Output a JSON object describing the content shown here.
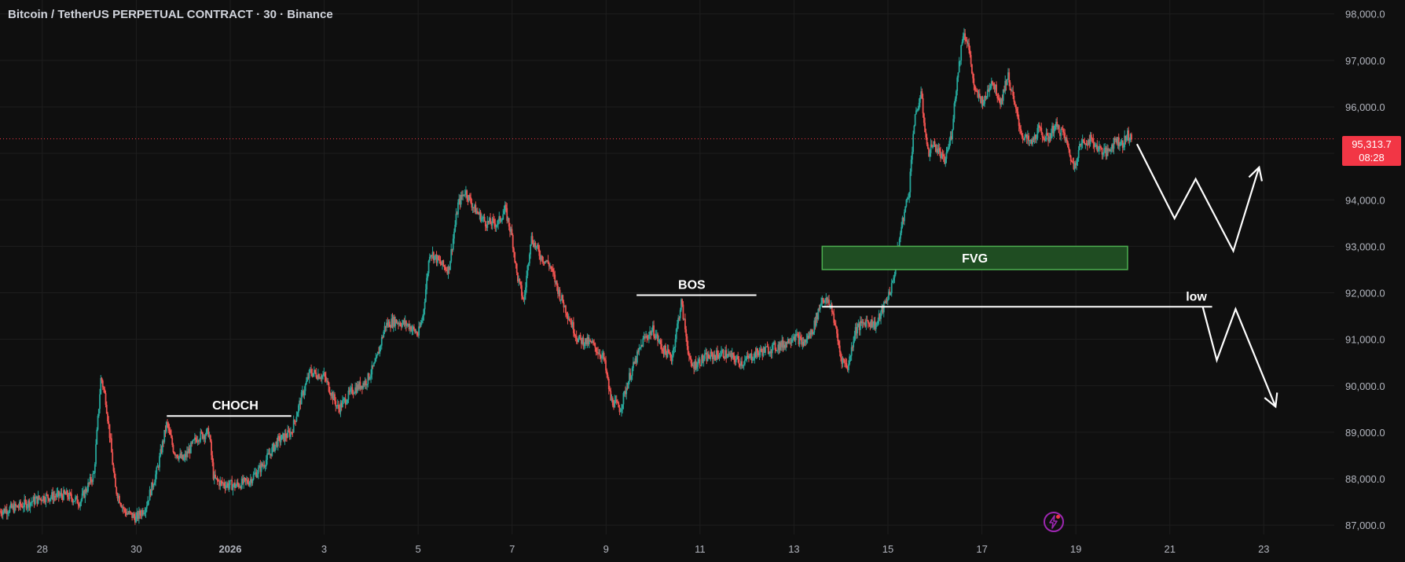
{
  "header": {
    "symbol_title": "Bitcoin / TetherUS PERPETUAL CONTRACT · 30 · Binance"
  },
  "price_badge": {
    "price": "95,313.7",
    "countdown": "08:28"
  },
  "colors": {
    "background": "#0f0f0f",
    "up": "#26a69a",
    "down": "#ef5350",
    "grid": "#1e1e1e",
    "axis_text": "#b2b5be",
    "annotation": "#ffffff",
    "fvg_fill": "#1f4d22",
    "fvg_border": "#4caf50",
    "current_price_line": "#f23645"
  },
  "icons": {
    "spark": "lightning-icon"
  },
  "chart_data": {
    "type": "candlestick",
    "y_axis": {
      "range": [
        86800,
        98300
      ],
      "ticks": [
        "87,000.0",
        "88,000.0",
        "89,000.0",
        "90,000.0",
        "91,000.0",
        "92,000.0",
        "93,000.0",
        "94,000.0",
        "95,000.0",
        "96,000.0",
        "97,000.0",
        "98,000.0"
      ],
      "tick_values": [
        87000,
        88000,
        89000,
        90000,
        91000,
        92000,
        93000,
        94000,
        95000,
        96000,
        97000,
        98000
      ]
    },
    "x_axis": {
      "ticks": [
        {
          "label": "28",
          "day": 0
        },
        {
          "label": "30",
          "day": 2
        },
        {
          "label": "2026",
          "day": 4,
          "bold": true
        },
        {
          "label": "3",
          "day": 6
        },
        {
          "label": "5",
          "day": 8
        },
        {
          "label": "7",
          "day": 10
        },
        {
          "label": "9",
          "day": 12
        },
        {
          "label": "11",
          "day": 14
        },
        {
          "label": "13",
          "day": 16
        },
        {
          "label": "15",
          "day": 18
        },
        {
          "label": "17",
          "day": 20
        },
        {
          "label": "19",
          "day": 22
        },
        {
          "label": "21",
          "day": 24
        },
        {
          "label": "23",
          "day": 26
        }
      ],
      "day_range": [
        -0.9,
        27.5
      ]
    },
    "current_price": 95313.7,
    "price_path": [
      [
        -0.9,
        87300
      ],
      [
        -0.5,
        87400
      ],
      [
        0,
        87600
      ],
      [
        0.5,
        87650
      ],
      [
        0.8,
        87500
      ],
      [
        1.1,
        88100
      ],
      [
        1.25,
        90200
      ],
      [
        1.35,
        89700
      ],
      [
        1.45,
        88800
      ],
      [
        1.55,
        87800
      ],
      [
        1.75,
        87300
      ],
      [
        2.0,
        87150
      ],
      [
        2.2,
        87400
      ],
      [
        2.45,
        88200
      ],
      [
        2.65,
        89200
      ],
      [
        2.8,
        88600
      ],
      [
        3.0,
        88400
      ],
      [
        3.3,
        88900
      ],
      [
        3.55,
        89000
      ],
      [
        3.65,
        88000
      ],
      [
        3.8,
        87900
      ],
      [
        4.1,
        87850
      ],
      [
        4.4,
        87950
      ],
      [
        4.7,
        88300
      ],
      [
        5.0,
        88800
      ],
      [
        5.3,
        89000
      ],
      [
        5.5,
        89700
      ],
      [
        5.7,
        90300
      ],
      [
        6.0,
        90200
      ],
      [
        6.3,
        89500
      ],
      [
        6.6,
        89900
      ],
      [
        6.9,
        90100
      ],
      [
        7.1,
        90500
      ],
      [
        7.3,
        91300
      ],
      [
        7.5,
        91400
      ],
      [
        7.8,
        91300
      ],
      [
        8.0,
        91100
      ],
      [
        8.1,
        91500
      ],
      [
        8.25,
        92900
      ],
      [
        8.5,
        92600
      ],
      [
        8.65,
        92500
      ],
      [
        8.85,
        93900
      ],
      [
        9.0,
        94200
      ],
      [
        9.2,
        93800
      ],
      [
        9.45,
        93500
      ],
      [
        9.7,
        93500
      ],
      [
        9.85,
        93800
      ],
      [
        10.0,
        93200
      ],
      [
        10.1,
        92400
      ],
      [
        10.25,
        91800
      ],
      [
        10.4,
        93200
      ],
      [
        10.6,
        92800
      ],
      [
        10.8,
        92600
      ],
      [
        11.0,
        92000
      ],
      [
        11.2,
        91500
      ],
      [
        11.4,
        91000
      ],
      [
        11.7,
        90900
      ],
      [
        11.95,
        90600
      ],
      [
        12.1,
        89700
      ],
      [
        12.3,
        89500
      ],
      [
        12.5,
        90200
      ],
      [
        12.8,
        91000
      ],
      [
        13.0,
        91200
      ],
      [
        13.2,
        90800
      ],
      [
        13.4,
        90600
      ],
      [
        13.6,
        91800
      ],
      [
        13.8,
        90400
      ],
      [
        14.1,
        90600
      ],
      [
        14.5,
        90700
      ],
      [
        14.9,
        90500
      ],
      [
        15.2,
        90700
      ],
      [
        15.5,
        90800
      ],
      [
        15.8,
        90900
      ],
      [
        16.0,
        91100
      ],
      [
        16.2,
        90900
      ],
      [
        16.4,
        91200
      ],
      [
        16.6,
        91900
      ],
      [
        16.8,
        91700
      ],
      [
        17.0,
        90600
      ],
      [
        17.15,
        90400
      ],
      [
        17.3,
        91200
      ],
      [
        17.55,
        91400
      ],
      [
        17.75,
        91300
      ],
      [
        17.95,
        91800
      ],
      [
        18.1,
        92200
      ],
      [
        18.3,
        93500
      ],
      [
        18.45,
        94200
      ],
      [
        18.55,
        95600
      ],
      [
        18.7,
        96300
      ],
      [
        18.85,
        95000
      ],
      [
        18.95,
        95200
      ],
      [
        19.05,
        95100
      ],
      [
        19.2,
        94800
      ],
      [
        19.35,
        95400
      ],
      [
        19.45,
        96400
      ],
      [
        19.6,
        97600
      ],
      [
        19.7,
        97400
      ],
      [
        19.85,
        96300
      ],
      [
        20.05,
        96100
      ],
      [
        20.2,
        96600
      ],
      [
        20.4,
        96100
      ],
      [
        20.55,
        96700
      ],
      [
        20.7,
        96000
      ],
      [
        20.85,
        95400
      ],
      [
        21.05,
        95200
      ],
      [
        21.2,
        95500
      ],
      [
        21.4,
        95300
      ],
      [
        21.55,
        95600
      ],
      [
        21.75,
        95400
      ],
      [
        21.95,
        94700
      ],
      [
        22.1,
        95200
      ],
      [
        22.3,
        95300
      ],
      [
        22.5,
        95100
      ],
      [
        22.65,
        95000
      ],
      [
        22.85,
        95300
      ],
      [
        23.0,
        95200
      ],
      [
        23.1,
        95400
      ],
      [
        23.2,
        95300
      ]
    ],
    "annotations": {
      "choch": {
        "label": "CHOCH",
        "price": 89350,
        "day_start": 2.65,
        "day_end": 5.3
      },
      "bos": {
        "label": "BOS",
        "price": 91950,
        "day_start": 12.65,
        "day_end": 15.2
      },
      "fvg": {
        "label": "FVG",
        "price_high": 93000,
        "price_low": 92500,
        "day_start": 16.6,
        "day_end": 23.1
      },
      "low": {
        "label": "low",
        "price": 91700,
        "day_start": 16.6,
        "day_end": 24.9
      },
      "forecast_up": [
        [
          23.3,
          95200
        ],
        [
          24.1,
          93600
        ],
        [
          24.55,
          94450
        ],
        [
          25.35,
          92900
        ],
        [
          25.9,
          94700
        ]
      ],
      "forecast_down": [
        [
          24.7,
          91700
        ],
        [
          25.0,
          90550
        ],
        [
          25.4,
          91650
        ],
        [
          26.25,
          89550
        ]
      ]
    }
  }
}
